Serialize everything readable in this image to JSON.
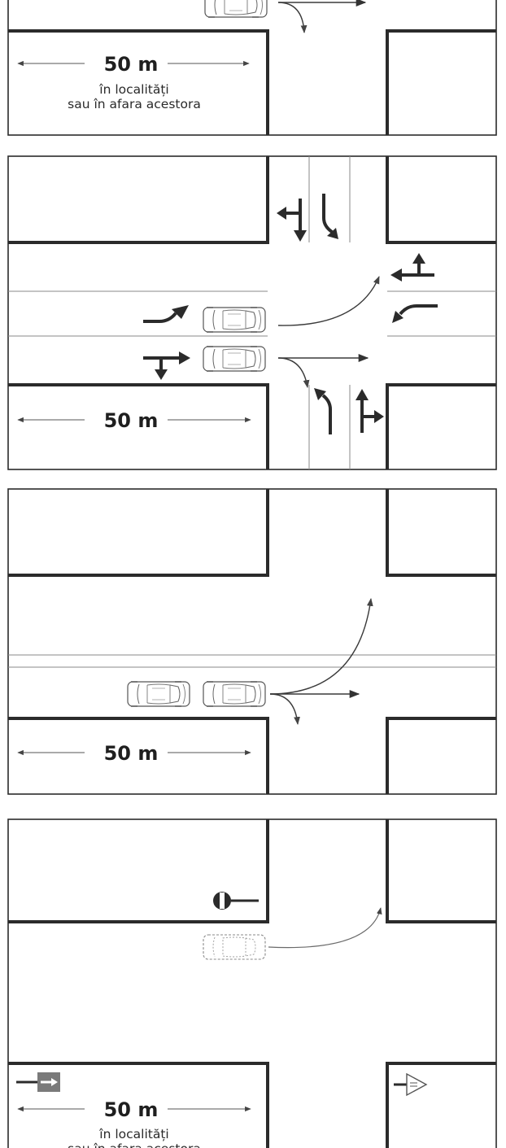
{
  "colors": {
    "ink": "#2b2b2b",
    "sign_panel": "#7a7a7a"
  },
  "panels": [
    {
      "id": "panel-1",
      "distance_label": "50 m",
      "caption_line1": "în localități",
      "caption_line2": "sau în afara acestora"
    },
    {
      "id": "panel-2",
      "distance_label": "50 m"
    },
    {
      "id": "panel-3",
      "distance_label": "50 m"
    },
    {
      "id": "panel-4",
      "distance_label": "50 m",
      "caption_line1": "în localități",
      "caption_line2": "sau în afara acestora"
    }
  ],
  "icons": [
    "car-icon",
    "lane-arrow-icon",
    "priority-road-sign-icon",
    "no-entry-sign-icon",
    "direction-sign-icon"
  ]
}
